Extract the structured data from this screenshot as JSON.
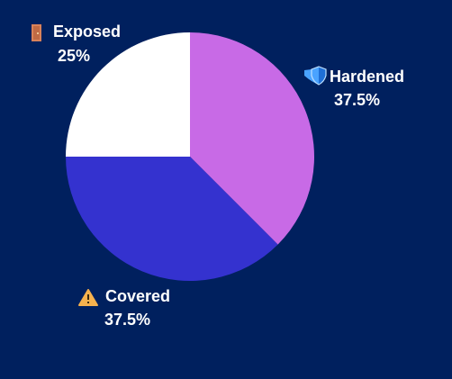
{
  "chart_data": {
    "type": "pie",
    "categories": [
      "Hardened",
      "Covered",
      "Exposed"
    ],
    "values": [
      37.5,
      37.5,
      25
    ],
    "value_labels": [
      "37.5%",
      "37.5%",
      "25%"
    ],
    "colors": [
      "#c86ae6",
      "#3432cf",
      "#ffffff"
    ]
  }
}
